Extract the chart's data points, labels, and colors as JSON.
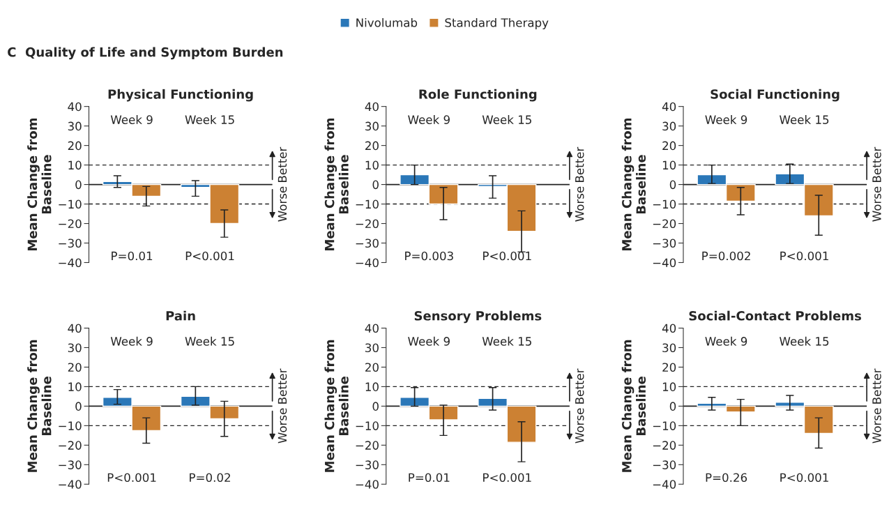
{
  "chart_data": [
    {
      "type": "bar",
      "title": "Physical Functioning",
      "ylabel": "Mean Change from Baseline",
      "categories": [
        "Week 9",
        "Week 15"
      ],
      "ylim": [
        -40,
        40
      ],
      "yticks": [
        -40,
        -30,
        -20,
        -10,
        0,
        10,
        20,
        30,
        40
      ],
      "legend": "top",
      "grid": false,
      "series": [
        {
          "name": "Nivolumab",
          "color": "#2a77b8",
          "values": [
            1.5,
            -1.5
          ],
          "errors": [
            [
              -1.5,
              4.5
            ],
            [
              -6,
              2
            ]
          ]
        },
        {
          "name": "Standard Therapy",
          "color": "#cc8133",
          "values": [
            -6,
            -20
          ],
          "errors": [
            [
              -11,
              -1
            ],
            [
              -27,
              -13
            ]
          ]
        }
      ],
      "ref_lines": [
        {
          "axis": "y",
          "value": 10,
          "line_style": "dashed"
        },
        {
          "axis": "y",
          "value": -10,
          "line_style": "dashed"
        },
        {
          "axis": "y",
          "value": 0,
          "line_style": "solid"
        }
      ],
      "annotations": [
        "P=0.01",
        "P<0.001",
        "Better",
        "Worse",
        "C  Quality of Life and Symptom Burden"
      ]
    },
    {
      "type": "bar",
      "title": "Role Functioning",
      "ylabel": "Mean Change from Baseline",
      "categories": [
        "Week 9",
        "Week 15"
      ],
      "ylim": [
        -40,
        40
      ],
      "yticks": [
        -40,
        -30,
        -20,
        -10,
        0,
        10,
        20,
        30,
        40
      ],
      "grid": false,
      "series": [
        {
          "color": "#2a77b8",
          "values": [
            5,
            -1
          ],
          "errors": [
            [
              0,
              10
            ],
            [
              -7,
              4.5
            ]
          ]
        },
        {
          "color": "#cc8133",
          "values": [
            -10,
            -24
          ],
          "errors": [
            [
              -18,
              -1.5
            ],
            [
              -34.5,
              -13.5
            ]
          ]
        }
      ],
      "ref_lines": [
        {
          "axis": "y",
          "value": 10,
          "line_style": "dashed"
        },
        {
          "axis": "y",
          "value": -10,
          "line_style": "dashed"
        },
        {
          "axis": "y",
          "value": 0,
          "line_style": "solid"
        }
      ],
      "annotations": [
        "P=0.003",
        "P<0.001",
        "Better",
        "Worse"
      ]
    },
    {
      "type": "bar",
      "title": "Social Functioning",
      "ylabel": "Mean Change from Baseline",
      "categories": [
        "Week 9",
        "Week 15"
      ],
      "ylim": [
        -40,
        40
      ],
      "yticks": [
        -40,
        -30,
        -20,
        -10,
        0,
        10,
        20,
        30,
        40
      ],
      "grid": false,
      "series": [
        {
          "color": "#2a77b8",
          "values": [
            5,
            5.5
          ],
          "errors": [
            [
              0.5,
              10
            ],
            [
              0.5,
              10.5
            ]
          ]
        },
        {
          "color": "#cc8133",
          "values": [
            -8.5,
            -16
          ],
          "errors": [
            [
              -15.5,
              -1.5
            ],
            [
              -26,
              -5.5
            ]
          ]
        }
      ],
      "ref_lines": [
        {
          "axis": "y",
          "value": 10,
          "line_style": "dashed"
        },
        {
          "axis": "y",
          "value": -10,
          "line_style": "dashed"
        },
        {
          "axis": "y",
          "value": 0,
          "line_style": "solid"
        }
      ],
      "annotations": [
        "P=0.002",
        "P<0.001",
        "Better",
        "Worse"
      ]
    },
    {
      "type": "bar",
      "title": "Pain",
      "ylabel": "Mean Change from Baseline",
      "categories": [
        "Week 9",
        "Week 15"
      ],
      "ylim": [
        -40,
        40
      ],
      "yticks": [
        -40,
        -30,
        -20,
        -10,
        0,
        10,
        20,
        30,
        40
      ],
      "grid": false,
      "series": [
        {
          "color": "#2a77b8",
          "values": [
            4.5,
            5
          ],
          "errors": [
            [
              1,
              8.5
            ],
            [
              0.5,
              10
            ]
          ]
        },
        {
          "color": "#cc8133",
          "values": [
            -12.5,
            -6.5
          ],
          "errors": [
            [
              -19,
              -6
            ],
            [
              -15.5,
              2.5
            ]
          ]
        }
      ],
      "ref_lines": [
        {
          "axis": "y",
          "value": 10,
          "line_style": "dashed"
        },
        {
          "axis": "y",
          "value": -10,
          "line_style": "dashed"
        },
        {
          "axis": "y",
          "value": 0,
          "line_style": "solid"
        }
      ],
      "annotations": [
        "P<0.001",
        "P=0.02",
        "Better",
        "Worse"
      ]
    },
    {
      "type": "bar",
      "title": "Sensory Problems",
      "ylabel": "Mean Change from Baseline",
      "categories": [
        "Week 9",
        "Week 15"
      ],
      "ylim": [
        -40,
        40
      ],
      "yticks": [
        -40,
        -30,
        -20,
        -10,
        0,
        10,
        20,
        30,
        40
      ],
      "grid": false,
      "series": [
        {
          "color": "#2a77b8",
          "values": [
            4.5,
            4
          ],
          "errors": [
            [
              0,
              9.5
            ],
            [
              -2,
              9.5
            ]
          ]
        },
        {
          "color": "#cc8133",
          "values": [
            -7,
            -18.5
          ],
          "errors": [
            [
              -15,
              0.5
            ],
            [
              -28.5,
              -8
            ]
          ]
        }
      ],
      "ref_lines": [
        {
          "axis": "y",
          "value": 10,
          "line_style": "dashed"
        },
        {
          "axis": "y",
          "value": -10,
          "line_style": "dashed"
        },
        {
          "axis": "y",
          "value": 0,
          "line_style": "solid"
        }
      ],
      "annotations": [
        "P=0.01",
        "P<0.001",
        "Better",
        "Worse"
      ]
    },
    {
      "type": "bar",
      "title": "Social-Contact Problems",
      "ylabel": "Mean Change from Baseline",
      "categories": [
        "Week 9",
        "Week 15"
      ],
      "ylim": [
        -40,
        40
      ],
      "yticks": [
        -40,
        -30,
        -20,
        -10,
        0,
        10,
        20,
        30,
        40
      ],
      "grid": false,
      "series": [
        {
          "color": "#2a77b8",
          "values": [
            1.5,
            2
          ],
          "errors": [
            [
              -2,
              4.5
            ],
            [
              -2,
              5.5
            ]
          ]
        },
        {
          "color": "#cc8133",
          "values": [
            -3,
            -14
          ],
          "errors": [
            [
              -10,
              3.5
            ],
            [
              -21.5,
              -6
            ]
          ]
        }
      ],
      "ref_lines": [
        {
          "axis": "y",
          "value": 10,
          "line_style": "dashed"
        },
        {
          "axis": "y",
          "value": -10,
          "line_style": "dashed"
        },
        {
          "axis": "y",
          "value": 0,
          "line_style": "solid"
        }
      ],
      "annotations": [
        "P=0.26",
        "P<0.001",
        "Better",
        "Worse"
      ]
    }
  ]
}
